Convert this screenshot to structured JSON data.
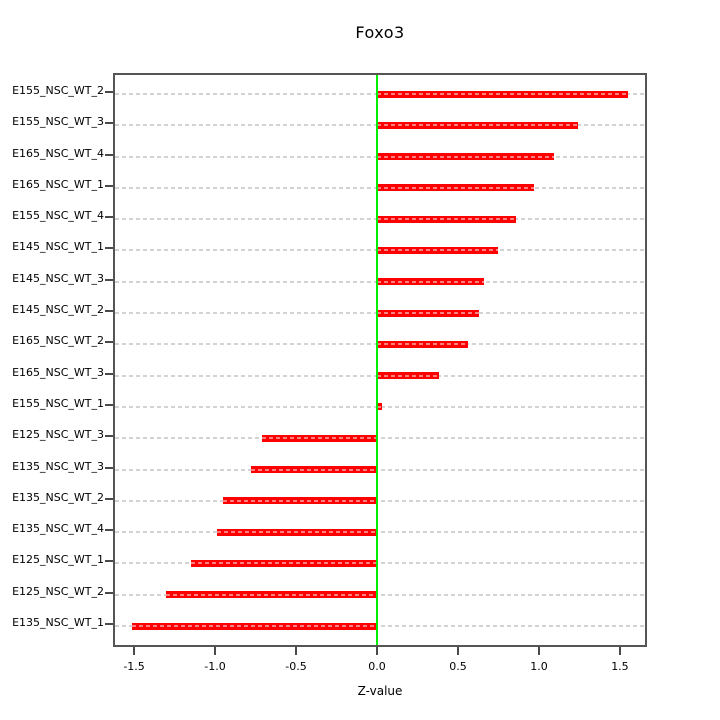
{
  "chart_data": {
    "type": "bar",
    "orientation": "horizontal",
    "title": "Foxo3",
    "xlabel": "Z-value",
    "ylabel": "",
    "xlim": [
      -1.63,
      1.667
    ],
    "x_ticks": [
      -1.5,
      -1.0,
      -0.5,
      0.0,
      0.5,
      1.0,
      1.5
    ],
    "x_tick_labels": [
      "-1.5",
      "-1.0",
      "-0.5",
      "0.0",
      "0.5",
      "1.0",
      "1.5"
    ],
    "categories": [
      "E155_NSC_WT_2",
      "E155_NSC_WT_3",
      "E165_NSC_WT_4",
      "E165_NSC_WT_1",
      "E155_NSC_WT_4",
      "E145_NSC_WT_1",
      "E145_NSC_WT_3",
      "E145_NSC_WT_2",
      "E165_NSC_WT_2",
      "E165_NSC_WT_3",
      "E155_NSC_WT_1",
      "E125_NSC_WT_3",
      "E135_NSC_WT_3",
      "E135_NSC_WT_2",
      "E135_NSC_WT_4",
      "E125_NSC_WT_1",
      "E125_NSC_WT_2",
      "E135_NSC_WT_1"
    ],
    "values": [
      1.55,
      1.24,
      1.09,
      0.97,
      0.86,
      0.75,
      0.66,
      0.63,
      0.56,
      0.38,
      0.03,
      -0.71,
      -0.78,
      -0.95,
      -0.99,
      -1.15,
      -1.3,
      -1.51
    ],
    "zero_reference_line": 0.0,
    "grid": "dashed-horizontal-per-row",
    "legend": "none",
    "colors": {
      "bar": "#ff0000",
      "zero_line": "#00ee00",
      "grid_dash": "#d3d3d3",
      "bar_inner_dash": "rgba(255,255,255,0.5)",
      "axis_box": "#555555",
      "text": "#000000"
    }
  }
}
